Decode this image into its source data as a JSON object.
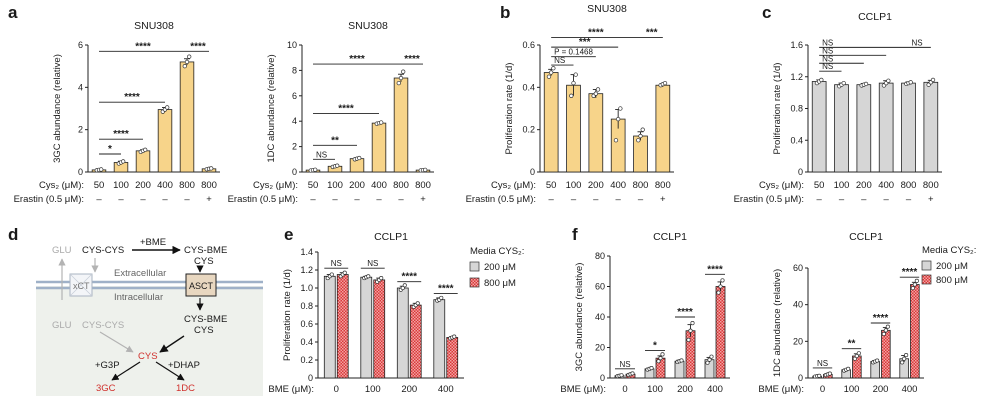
{
  "panel_labels": {
    "a": "a",
    "b": "b",
    "c": "c",
    "d": "d",
    "e": "e",
    "f": "f"
  },
  "colors": {
    "cys_bar": "#f7d48a",
    "gray_bar": "#d6d6d6",
    "red_bar": "#d9383a",
    "diagram_bg": "#eef1ec",
    "membrane": "#9fb1c8",
    "red_text": "#d0312d"
  },
  "conditions": {
    "cys_label": "Cys₂ (μM):",
    "cys_values": [
      "50",
      "100",
      "200",
      "400",
      "800",
      "800"
    ],
    "erastin_label": "Erastin (0.5 μM):",
    "erastin_values": [
      "–",
      "–",
      "–",
      "–",
      "–",
      "+"
    ],
    "bme_label": "BME (μM):",
    "bme_values": [
      "0",
      "100",
      "200",
      "400"
    ]
  },
  "legend": {
    "title": "Media CYS₂:",
    "items": [
      "200 μM",
      "800 μM"
    ]
  },
  "diagram": {
    "glu_top": "GLU",
    "cys_cys_top": "CYS-CYS",
    "bme": "+BME",
    "cys_bme_top_1": "CYS-BME",
    "cys_bme_top_2": "CYS",
    "extracellular": "Extracellular",
    "intracellular": "Intracellular",
    "xct": "xCT",
    "asct": "ASCT",
    "glu_bottom": "GLU",
    "cys_cys_bottom": "CYS-CYS",
    "cys_bme_in_1": "CYS-BME",
    "cys_bme_in_2": "CYS",
    "cys": "CYS",
    "g3p": "+G3P",
    "dhap": "+DHAP",
    "p3gc": "3GC",
    "p1dc": "1DC"
  },
  "chart_data": [
    {
      "id": "a1",
      "type": "bar",
      "title": "SNU308",
      "ylabel": "3GC abundance (relative)",
      "ylim": [
        0,
        6
      ],
      "yticks": [
        "0",
        "2",
        "4",
        "6"
      ],
      "categories": [
        "50",
        "100",
        "200",
        "400",
        "800",
        "800"
      ],
      "values": [
        0.1,
        0.45,
        1.0,
        2.95,
        5.2,
        0.15
      ],
      "errors": [
        0.03,
        0.06,
        0.05,
        0.1,
        0.15,
        0.03
      ],
      "points": [
        [
          0.08,
          0.1,
          0.12
        ],
        [
          0.4,
          0.45,
          0.5
        ],
        [
          0.95,
          1.0,
          1.05
        ],
        [
          2.85,
          2.95,
          3.05
        ],
        [
          5.0,
          5.2,
          5.45
        ],
        [
          0.13,
          0.15,
          0.17
        ]
      ],
      "significance": [
        {
          "from": 0,
          "to": 1,
          "label": "*",
          "y": 0.85
        },
        {
          "from": 0,
          "to": 2,
          "label": "****",
          "y": 1.55
        },
        {
          "from": 0,
          "to": 3,
          "label": "****",
          "y": 3.3
        },
        {
          "from": 0,
          "to": 4,
          "label": "****",
          "y": 5.7
        },
        {
          "from": 4,
          "to": 5,
          "label": "****",
          "y": 5.7
        }
      ]
    },
    {
      "id": "a2",
      "type": "bar",
      "title": "SNU308",
      "ylabel": "1DC abundance (relative)",
      "ylim": [
        0,
        10
      ],
      "yticks": [
        "0",
        "2",
        "4",
        "6",
        "8",
        "10"
      ],
      "categories": [
        "50",
        "100",
        "200",
        "400",
        "800",
        "800"
      ],
      "values": [
        0.15,
        0.45,
        1.05,
        3.85,
        7.4,
        0.15
      ],
      "errors": [
        0.03,
        0.05,
        0.06,
        0.08,
        0.3,
        0.03
      ],
      "points": [
        [
          0.12,
          0.15,
          0.18
        ],
        [
          0.4,
          0.45,
          0.5
        ],
        [
          1.0,
          1.05,
          1.1
        ],
        [
          3.8,
          3.85,
          3.9
        ],
        [
          7.0,
          7.4,
          7.9
        ],
        [
          0.13,
          0.15,
          0.17
        ]
      ],
      "significance": [
        {
          "from": 0,
          "to": 1,
          "label": "NS",
          "y": 1.0
        },
        {
          "from": 0,
          "to": 2,
          "label": "**",
          "y": 2.1
        },
        {
          "from": 0,
          "to": 3,
          "label": "****",
          "y": 4.6
        },
        {
          "from": 0,
          "to": 4,
          "label": "****",
          "y": 8.5
        },
        {
          "from": 4,
          "to": 5,
          "label": "****",
          "y": 8.5
        }
      ]
    },
    {
      "id": "b",
      "type": "bar",
      "title": "SNU308",
      "ylabel": "Proliferation rate (1/d)",
      "ylim": [
        0,
        0.6
      ],
      "yticks": [
        "0",
        "0.2",
        "0.4",
        "0.6"
      ],
      "categories": [
        "50",
        "100",
        "200",
        "400",
        "800",
        "800"
      ],
      "values": [
        0.47,
        0.41,
        0.37,
        0.25,
        0.17,
        0.41
      ],
      "errors": [
        0.015,
        0.05,
        0.02,
        0.045,
        0.02,
        0.008
      ],
      "points": [
        [
          0.45,
          0.47,
          0.49
        ],
        [
          0.36,
          0.42,
          0.46
        ],
        [
          0.36,
          0.37,
          0.39
        ],
        [
          0.15,
          0.25,
          0.3
        ],
        [
          0.15,
          0.17,
          0.2
        ],
        [
          0.41,
          0.415,
          0.42
        ]
      ],
      "significance": [
        {
          "from": 0,
          "to": 1,
          "label": "NS",
          "y": 0.505
        },
        {
          "from": 0,
          "to": 2,
          "label": "P = 0.1468",
          "y": 0.545
        },
        {
          "from": 0,
          "to": 3,
          "label": "***",
          "y": 0.59
        },
        {
          "from": 0,
          "to": 4,
          "label": "****",
          "y": 0.635
        },
        {
          "from": 4,
          "to": 5,
          "label": "***",
          "y": 0.635
        }
      ]
    },
    {
      "id": "c",
      "type": "bar",
      "title": "CCLP1",
      "ylabel": "Proliferation rate (1/d)",
      "ylim": [
        0,
        1.6
      ],
      "yticks": [
        "0",
        "0.4",
        "0.8",
        "1.2",
        "1.6"
      ],
      "categories": [
        "50",
        "100",
        "200",
        "400",
        "800",
        "800"
      ],
      "values": [
        1.14,
        1.1,
        1.1,
        1.12,
        1.12,
        1.13
      ],
      "errors": [
        0.02,
        0.02,
        0.015,
        0.03,
        0.015,
        0.025
      ],
      "points": [
        [
          1.12,
          1.14,
          1.16
        ],
        [
          1.08,
          1.1,
          1.12
        ],
        [
          1.09,
          1.1,
          1.11
        ],
        [
          1.09,
          1.12,
          1.15
        ],
        [
          1.11,
          1.12,
          1.13
        ],
        [
          1.1,
          1.13,
          1.16
        ]
      ],
      "significance": [
        {
          "from": 0,
          "to": 1,
          "label": "NS",
          "y": 1.27
        },
        {
          "from": 0,
          "to": 2,
          "label": "NS",
          "y": 1.37
        },
        {
          "from": 0,
          "to": 3,
          "label": "NS",
          "y": 1.47
        },
        {
          "from": 0,
          "to": 4,
          "label": "NS",
          "y": 1.57
        },
        {
          "from": 4,
          "to": 5,
          "label": "NS",
          "y": 1.57
        }
      ]
    },
    {
      "id": "e",
      "type": "bar",
      "title": "CCLP1",
      "ylabel": "Proliferation rate (1/d)",
      "ylim": [
        0,
        1.4
      ],
      "yticks": [
        "0",
        "0.2",
        "0.4",
        "0.6",
        "0.8",
        "1.0",
        "1.2",
        "1.4"
      ],
      "categories": [
        "0",
        "100",
        "200",
        "400"
      ],
      "series": [
        {
          "name": "200 μM",
          "values": [
            1.13,
            1.12,
            1.0,
            0.87
          ],
          "errors": [
            0.02,
            0.01,
            0.02,
            0.02
          ],
          "points": [
            [
              1.11,
              1.13,
              1.15
            ],
            [
              1.11,
              1.12,
              1.13
            ],
            [
              0.98,
              1.0,
              1.03
            ],
            [
              0.86,
              0.87,
              0.89
            ]
          ]
        },
        {
          "name": "800 μM",
          "values": [
            1.15,
            1.09,
            0.81,
            0.45
          ],
          "errors": [
            0.02,
            0.02,
            0.02,
            0.01
          ],
          "points": [
            [
              1.13,
              1.15,
              1.17
            ],
            [
              1.07,
              1.09,
              1.11
            ],
            [
              0.79,
              0.81,
              0.83
            ],
            [
              0.44,
              0.45,
              0.46
            ]
          ]
        }
      ],
      "significance": [
        {
          "cat": 0,
          "label": "NS",
          "y": 1.22
        },
        {
          "cat": 1,
          "label": "NS",
          "y": 1.22
        },
        {
          "cat": 2,
          "label": "****",
          "y": 1.07
        },
        {
          "cat": 3,
          "label": "****",
          "y": 0.94
        }
      ]
    },
    {
      "id": "f1",
      "type": "bar",
      "title": "CCLP1",
      "ylabel": "3GC abundance (relative)",
      "ylim": [
        0,
        80
      ],
      "yticks": [
        "0",
        "20",
        "40",
        "60",
        "80"
      ],
      "categories": [
        "0",
        "100",
        "200",
        "400"
      ],
      "series": [
        {
          "name": "200 μM",
          "values": [
            1.5,
            6,
            11,
            12
          ],
          "errors": [
            0.3,
            0.5,
            0.7,
            1.5
          ],
          "points": [
            [
              1.2,
              1.5,
              1.8
            ],
            [
              5.5,
              6,
              6.5
            ],
            [
              10.5,
              11,
              11.5
            ],
            [
              10,
              12,
              14
            ]
          ]
        },
        {
          "name": "800 μM",
          "values": [
            2.5,
            13,
            31,
            60
          ],
          "errors": [
            0.5,
            1.5,
            4,
            3
          ],
          "points": [
            [
              2,
              2.5,
              3
            ],
            [
              11,
              13,
              15.5
            ],
            [
              25,
              31,
              36
            ],
            [
              56,
              60,
              64
            ]
          ]
        }
      ],
      "significance": [
        {
          "cat": 0,
          "label": "NS",
          "y": 6
        },
        {
          "cat": 1,
          "label": "*",
          "y": 18
        },
        {
          "cat": 2,
          "label": "****",
          "y": 40
        },
        {
          "cat": 3,
          "label": "****",
          "y": 68
        }
      ]
    },
    {
      "id": "f2",
      "type": "bar",
      "title": "CCLP1",
      "ylabel": "1DC abundance (relative)",
      "ylim": [
        0,
        60
      ],
      "yticks": [
        "0",
        "20",
        "40",
        "60"
      ],
      "categories": [
        "0",
        "100",
        "200",
        "400"
      ],
      "series": [
        {
          "name": "200 μM",
          "values": [
            1,
            4.5,
            9,
            10.5
          ],
          "errors": [
            0.2,
            0.4,
            0.5,
            1.8
          ],
          "points": [
            [
              0.8,
              1,
              1.2
            ],
            [
              4,
              4.5,
              5
            ],
            [
              8.5,
              9,
              9.5
            ],
            [
              8.5,
              10.5,
              12.5
            ]
          ]
        },
        {
          "name": "800 μM",
          "values": [
            2,
            12,
            26,
            51
          ],
          "errors": [
            0.4,
            1.2,
            1.5,
            1.2
          ],
          "points": [
            [
              1.6,
              2,
              2.4
            ],
            [
              10.5,
              12,
              13.5
            ],
            [
              24,
              26,
              28
            ],
            [
              49,
              51,
              53
            ]
          ]
        }
      ],
      "significance": [
        {
          "cat": 0,
          "label": "NS",
          "y": 5.5
        },
        {
          "cat": 1,
          "label": "**",
          "y": 16
        },
        {
          "cat": 2,
          "label": "****",
          "y": 30
        },
        {
          "cat": 3,
          "label": "****",
          "y": 55
        }
      ]
    }
  ]
}
